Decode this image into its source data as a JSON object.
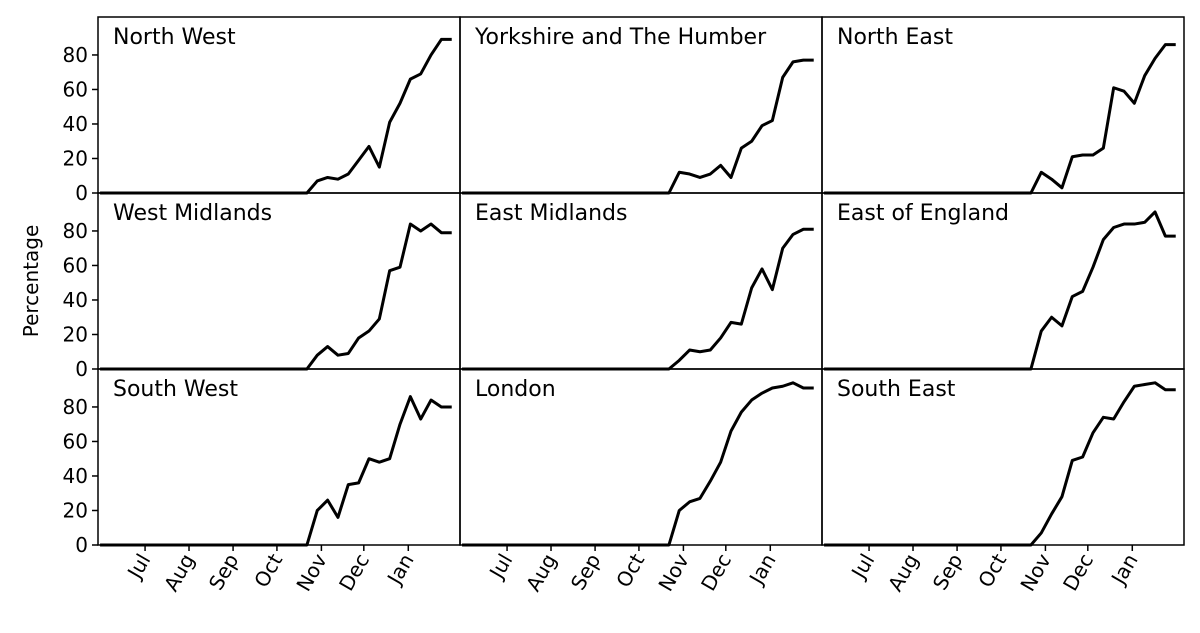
{
  "chart_data": [
    {
      "type": "line",
      "title": "North West",
      "color": "#000000",
      "x": [
        0,
        1,
        2,
        3,
        4,
        5,
        6,
        7,
        8,
        9,
        10,
        11,
        12,
        13,
        14,
        15,
        16,
        17,
        18,
        19,
        20,
        21,
        22,
        23,
        24,
        25,
        26,
        27,
        28,
        29,
        30,
        31,
        32,
        33,
        34
      ],
      "values": [
        0,
        0,
        0,
        0,
        0,
        0,
        0,
        0,
        0,
        0,
        0,
        0,
        0,
        0,
        0,
        0,
        0,
        0,
        0,
        0,
        0,
        7,
        9,
        8,
        11,
        19,
        27,
        15,
        41,
        52,
        66,
        69,
        80,
        89,
        89
      ],
      "xlim": [
        -0.2,
        34.8
      ],
      "ylim": [
        0,
        102
      ],
      "yticks": [
        0,
        20,
        40,
        60,
        80
      ]
    },
    {
      "type": "line",
      "title": "Yorkshire and The Humber",
      "color": "#000000",
      "x": [
        0,
        1,
        2,
        3,
        4,
        5,
        6,
        7,
        8,
        9,
        10,
        11,
        12,
        13,
        14,
        15,
        16,
        17,
        18,
        19,
        20,
        21,
        22,
        23,
        24,
        25,
        26,
        27,
        28,
        29,
        30,
        31,
        32,
        33,
        34
      ],
      "values": [
        0,
        0,
        0,
        0,
        0,
        0,
        0,
        0,
        0,
        0,
        0,
        0,
        0,
        0,
        0,
        0,
        0,
        0,
        0,
        0,
        0,
        12,
        11,
        9,
        11,
        16,
        9,
        26,
        30,
        39,
        42,
        67,
        76,
        77,
        77
      ],
      "xlim": [
        -0.2,
        34.8
      ],
      "ylim": [
        0,
        102
      ]
    },
    {
      "type": "line",
      "title": "North East",
      "color": "#000000",
      "x": [
        0,
        1,
        2,
        3,
        4,
        5,
        6,
        7,
        8,
        9,
        10,
        11,
        12,
        13,
        14,
        15,
        16,
        17,
        18,
        19,
        20,
        21,
        22,
        23,
        24,
        25,
        26,
        27,
        28,
        29,
        30,
        31,
        32,
        33,
        34
      ],
      "values": [
        0,
        0,
        0,
        0,
        0,
        0,
        0,
        0,
        0,
        0,
        0,
        0,
        0,
        0,
        0,
        0,
        0,
        0,
        0,
        0,
        0,
        12,
        8,
        3,
        21,
        22,
        22,
        26,
        61,
        59,
        52,
        68,
        78,
        86,
        86
      ],
      "xlim": [
        -0.2,
        34.8
      ],
      "ylim": [
        0,
        102
      ]
    },
    {
      "type": "line",
      "title": "West Midlands",
      "ylabel": "Percentage",
      "color": "#000000",
      "x": [
        0,
        1,
        2,
        3,
        4,
        5,
        6,
        7,
        8,
        9,
        10,
        11,
        12,
        13,
        14,
        15,
        16,
        17,
        18,
        19,
        20,
        21,
        22,
        23,
        24,
        25,
        26,
        27,
        28,
        29,
        30,
        31,
        32,
        33,
        34
      ],
      "values": [
        0,
        0,
        0,
        0,
        0,
        0,
        0,
        0,
        0,
        0,
        0,
        0,
        0,
        0,
        0,
        0,
        0,
        0,
        0,
        0,
        0,
        8,
        13,
        8,
        9,
        18,
        22,
        29,
        57,
        59,
        84,
        80,
        84,
        79,
        79
      ],
      "xlim": [
        -0.2,
        34.8
      ],
      "ylim": [
        0,
        102
      ],
      "yticks": [
        0,
        20,
        40,
        60,
        80
      ]
    },
    {
      "type": "line",
      "title": "East Midlands",
      "color": "#000000",
      "x": [
        0,
        1,
        2,
        3,
        4,
        5,
        6,
        7,
        8,
        9,
        10,
        11,
        12,
        13,
        14,
        15,
        16,
        17,
        18,
        19,
        20,
        21,
        22,
        23,
        24,
        25,
        26,
        27,
        28,
        29,
        30,
        31,
        32,
        33,
        34
      ],
      "values": [
        0,
        0,
        0,
        0,
        0,
        0,
        0,
        0,
        0,
        0,
        0,
        0,
        0,
        0,
        0,
        0,
        0,
        0,
        0,
        0,
        0,
        5,
        11,
        10,
        11,
        18,
        27,
        26,
        47,
        58,
        46,
        70,
        78,
        81,
        81
      ],
      "xlim": [
        -0.2,
        34.8
      ],
      "ylim": [
        0,
        102
      ]
    },
    {
      "type": "line",
      "title": "East of England",
      "color": "#000000",
      "x": [
        0,
        1,
        2,
        3,
        4,
        5,
        6,
        7,
        8,
        9,
        10,
        11,
        12,
        13,
        14,
        15,
        16,
        17,
        18,
        19,
        20,
        21,
        22,
        23,
        24,
        25,
        26,
        27,
        28,
        29,
        30,
        31,
        32,
        33,
        34
      ],
      "values": [
        0,
        0,
        0,
        0,
        0,
        0,
        0,
        0,
        0,
        0,
        0,
        0,
        0,
        0,
        0,
        0,
        0,
        0,
        0,
        0,
        0,
        22,
        30,
        25,
        42,
        45,
        59,
        75,
        82,
        84,
        84,
        85,
        91,
        77,
        77
      ],
      "xlim": [
        -0.2,
        34.8
      ],
      "ylim": [
        0,
        102
      ]
    },
    {
      "type": "line",
      "title": "South West",
      "color": "#000000",
      "x": [
        0,
        1,
        2,
        3,
        4,
        5,
        6,
        7,
        8,
        9,
        10,
        11,
        12,
        13,
        14,
        15,
        16,
        17,
        18,
        19,
        20,
        21,
        22,
        23,
        24,
        25,
        26,
        27,
        28,
        29,
        30,
        31,
        32,
        33,
        34
      ],
      "values": [
        0,
        0,
        0,
        0,
        0,
        0,
        0,
        0,
        0,
        0,
        0,
        0,
        0,
        0,
        0,
        0,
        0,
        0,
        0,
        0,
        0,
        20,
        26,
        16,
        35,
        36,
        50,
        48,
        50,
        70,
        86,
        73,
        84,
        80,
        80
      ],
      "xlim": [
        -0.2,
        34.8
      ],
      "ylim": [
        0,
        102
      ],
      "yticks": [
        0,
        20,
        40,
        60,
        80
      ],
      "xticks": [
        {
          "value": 4.35,
          "label": "Jul"
        },
        {
          "value": 8.6,
          "label": "Aug"
        },
        {
          "value": 12.86,
          "label": "Sep"
        },
        {
          "value": 17.1,
          "label": "Oct"
        },
        {
          "value": 21.4,
          "label": "Nov"
        },
        {
          "value": 25.5,
          "label": "Dec"
        },
        {
          "value": 29.8,
          "label": "Jan"
        }
      ]
    },
    {
      "type": "line",
      "title": "London",
      "color": "#000000",
      "x": [
        0,
        1,
        2,
        3,
        4,
        5,
        6,
        7,
        8,
        9,
        10,
        11,
        12,
        13,
        14,
        15,
        16,
        17,
        18,
        19,
        20,
        21,
        22,
        23,
        24,
        25,
        26,
        27,
        28,
        29,
        30,
        31,
        32,
        33,
        34
      ],
      "values": [
        0,
        0,
        0,
        0,
        0,
        0,
        0,
        0,
        0,
        0,
        0,
        0,
        0,
        0,
        0,
        0,
        0,
        0,
        0,
        0,
        0,
        20,
        25,
        27,
        37,
        48,
        66,
        77,
        84,
        88,
        91,
        92,
        94,
        91,
        91
      ],
      "xlim": [
        -0.2,
        34.8
      ],
      "ylim": [
        0,
        102
      ],
      "xticks": [
        {
          "value": 4.35,
          "label": "Jul"
        },
        {
          "value": 8.6,
          "label": "Aug"
        },
        {
          "value": 12.86,
          "label": "Sep"
        },
        {
          "value": 17.1,
          "label": "Oct"
        },
        {
          "value": 21.4,
          "label": "Nov"
        },
        {
          "value": 25.5,
          "label": "Dec"
        },
        {
          "value": 29.8,
          "label": "Jan"
        }
      ]
    },
    {
      "type": "line",
      "title": "South East",
      "color": "#000000",
      "x": [
        0,
        1,
        2,
        3,
        4,
        5,
        6,
        7,
        8,
        9,
        10,
        11,
        12,
        13,
        14,
        15,
        16,
        17,
        18,
        19,
        20,
        21,
        22,
        23,
        24,
        25,
        26,
        27,
        28,
        29,
        30,
        31,
        32,
        33,
        34
      ],
      "values": [
        0,
        0,
        0,
        0,
        0,
        0,
        0,
        0,
        0,
        0,
        0,
        0,
        0,
        0,
        0,
        0,
        0,
        0,
        0,
        0,
        0,
        7,
        18,
        28,
        49,
        51,
        65,
        74,
        73,
        83,
        92,
        93,
        94,
        90,
        90
      ],
      "xlim": [
        -0.2,
        34.8
      ],
      "ylim": [
        0,
        102
      ],
      "xticks": [
        {
          "value": 4.35,
          "label": "Jul"
        },
        {
          "value": 8.6,
          "label": "Aug"
        },
        {
          "value": 12.86,
          "label": "Sep"
        },
        {
          "value": 17.1,
          "label": "Oct"
        },
        {
          "value": 21.4,
          "label": "Nov"
        },
        {
          "value": 25.5,
          "label": "Dec"
        },
        {
          "value": 29.8,
          "label": "Jan"
        }
      ]
    }
  ]
}
